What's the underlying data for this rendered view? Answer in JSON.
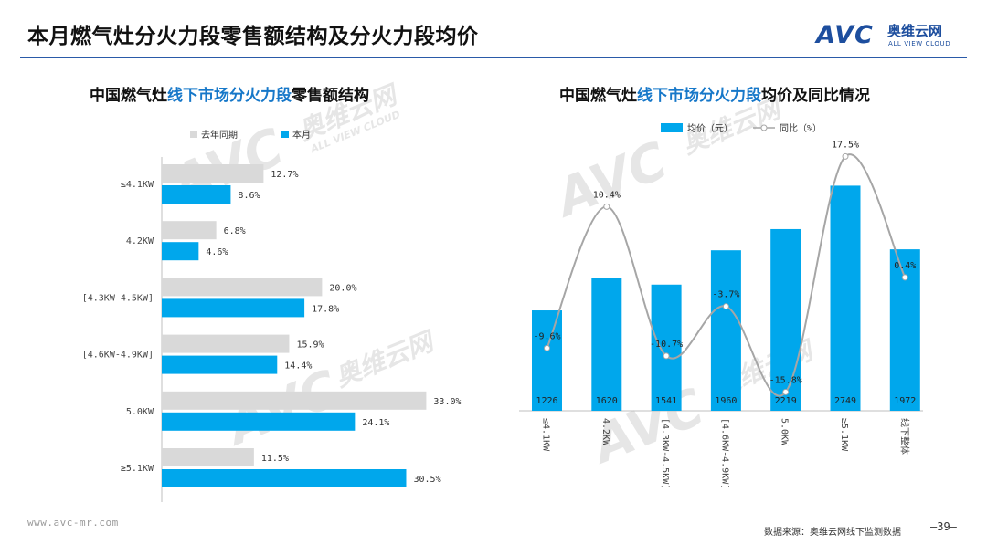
{
  "slide": {
    "title": "本月燃气灶分火力段零售额结构及分火力段均价",
    "page_number": "—39—",
    "footer_url": "www.avc-mr.com",
    "footer_source": "数据来源：奥维云网线下监测数据"
  },
  "logo": {
    "mark": "AVC",
    "name_cn": "奥维云网",
    "name_en": "ALL VIEW CLOUD"
  },
  "watermark": {
    "mark": "AVC",
    "name_cn": "奥维云网",
    "name_en": "ALL VIEW CLOUD"
  },
  "colors": {
    "accent": "#00a7ec",
    "prior": "#d9d9d9",
    "line": "#a6a6a6",
    "title_rule": "#2a5aa8"
  },
  "left_chart": {
    "title_pre": "中国燃气灶",
    "title_hl": "线下市场分火力段",
    "title_post": "零售额结构"
  },
  "right_chart": {
    "title_pre": "中国燃气灶",
    "title_hl": "线下市场分火力段",
    "title_post": "均价及同比情况"
  },
  "chart_data": [
    {
      "type": "bar",
      "orientation": "horizontal",
      "categories": [
        "≤4.1KW",
        "4.2KW",
        "[4.3KW-4.5KW]",
        "[4.6KW-4.9KW]",
        "5.0KW",
        "≥5.1KW"
      ],
      "series": [
        {
          "name": "去年同期",
          "values": [
            12.7,
            6.8,
            20.0,
            15.9,
            33.0,
            11.5
          ]
        },
        {
          "name": "本月",
          "values": [
            8.6,
            4.6,
            17.8,
            14.4,
            24.1,
            30.5
          ]
        }
      ],
      "value_suffix": "%",
      "xlim": [
        0,
        35
      ],
      "grid": false,
      "legend": "top-left"
    },
    {
      "type": "bar+line",
      "categories": [
        "≤4.1KW",
        "4.2KW",
        "[4.3KW-4.5KW]",
        "[4.6KW-4.9KW]",
        "5.0KW",
        "≥5.1KW",
        "线下整体"
      ],
      "bars": {
        "name": "均价（元）",
        "values": [
          1226,
          1620,
          1541,
          1960,
          2219,
          2749,
          1972
        ]
      },
      "line": {
        "name": "同比（%）",
        "values": [
          -9.6,
          10.4,
          -10.7,
          -3.7,
          -15.8,
          17.5,
          0.4
        ],
        "smooth": true
      },
      "ylim_bars": [
        0,
        2900
      ],
      "ylim_line": [
        -20,
        20
      ],
      "grid": false,
      "legend": "top-center"
    }
  ]
}
